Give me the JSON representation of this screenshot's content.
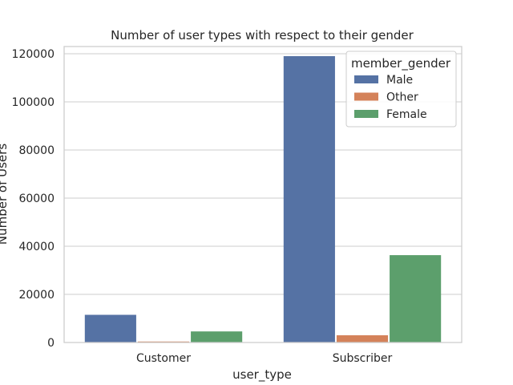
{
  "chart_data": {
    "type": "bar",
    "title": "Number of user types with respect to their gender",
    "xlabel": "user_type",
    "ylabel": "Number of Users",
    "categories": [
      "Customer",
      "Subscriber"
    ],
    "ylim": [
      0,
      123000
    ],
    "yticks": [
      0,
      20000,
      40000,
      60000,
      80000,
      100000,
      120000
    ],
    "grid": true,
    "legend": {
      "title": "member_gender",
      "placement": "top-right"
    },
    "series": [
      {
        "name": "Male",
        "color": "#5572a4",
        "values": [
          11500,
          119000
        ]
      },
      {
        "name": "Other",
        "color": "#d4825a",
        "values": [
          400,
          3000
        ]
      },
      {
        "name": "Female",
        "color": "#5c9f6c",
        "values": [
          4600,
          36300
        ]
      }
    ]
  }
}
